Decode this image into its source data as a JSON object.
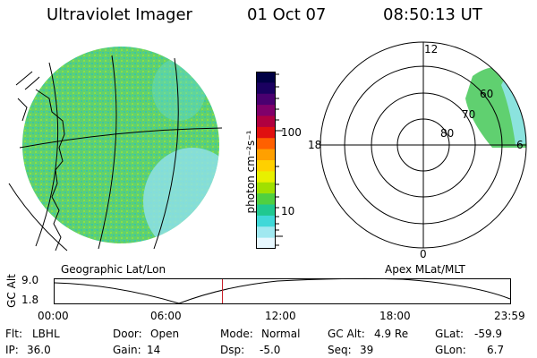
{
  "header": {
    "instrument": "Ultraviolet Imager",
    "date": "01 Oct 07",
    "time": "08:50:13 UT"
  },
  "colorbar": {
    "unit": "photon cm⁻²s⁻¹",
    "ticks": [
      "100",
      "10"
    ],
    "colors": [
      "#000044",
      "#1a0060",
      "#4a0070",
      "#80006a",
      "#b00040",
      "#e01010",
      "#ff6000",
      "#ffa000",
      "#ffd000",
      "#e8f000",
      "#a0e000",
      "#50d040",
      "#20c890",
      "#40d8d8",
      "#a0e8f0",
      "#e8f8ff"
    ]
  },
  "polar_plot": {
    "mlt_labels": {
      "top": "12",
      "left": "18",
      "right": "6",
      "bottom": "0"
    },
    "lat_labels": [
      "60",
      "70",
      "80"
    ]
  },
  "panel_labels": {
    "geographic": "Geographic Lat/Lon",
    "apex": "Apex MLat/MLT"
  },
  "altitude_plot": {
    "axis_label": "GC Alt",
    "y_ticks": [
      "9.0",
      "1.8"
    ],
    "x_ticks": [
      "00:00",
      "06:00",
      "12:00",
      "18:00",
      "23:59"
    ],
    "current_marker_hours": 8.84
  },
  "info": {
    "row1": [
      {
        "label": "Flt:",
        "value": "LBHL"
      },
      {
        "label": "Door:",
        "value": "Open"
      },
      {
        "label": "Mode:",
        "value": "Normal"
      },
      {
        "label": "GC Alt:",
        "value": "4.9 Re"
      },
      {
        "label": "GLat:",
        "value": "-59.9"
      }
    ],
    "row2": [
      {
        "label": "IP:",
        "value": "36.0"
      },
      {
        "label": "Gain:",
        "value": "14"
      },
      {
        "label": "Dsp:",
        "value": "-5.0"
      },
      {
        "label": "Seq:",
        "value": "39"
      },
      {
        "label": "GLon:",
        "value": "6.7"
      }
    ]
  }
}
